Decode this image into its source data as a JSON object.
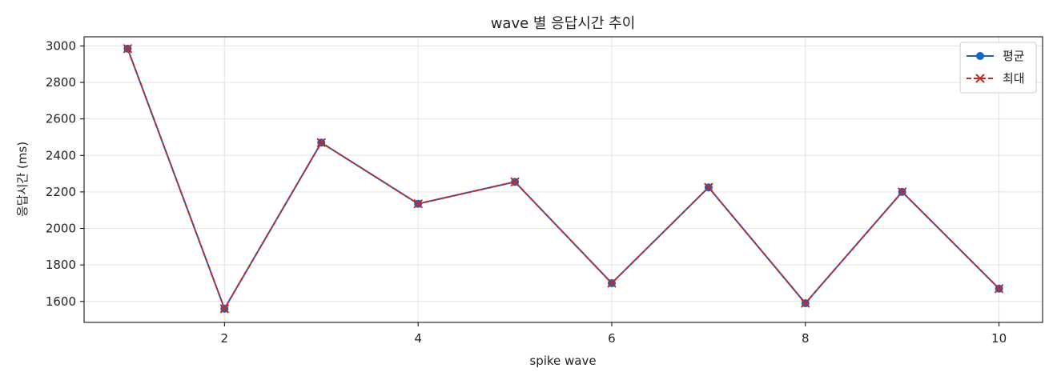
{
  "chart_data": {
    "type": "line",
    "title": "wave 별 응답시간 추이",
    "xlabel": "spike wave",
    "ylabel": "응답시간 (ms)",
    "x": [
      1,
      2,
      3,
      4,
      5,
      6,
      7,
      8,
      9,
      10
    ],
    "xlim": [
      0.55,
      10.45
    ],
    "ylim": [
      1485,
      3050
    ],
    "xticks": [
      2,
      4,
      6,
      8,
      10
    ],
    "yticks": [
      1600,
      1800,
      2000,
      2200,
      2400,
      2600,
      2800,
      3000
    ],
    "grid": true,
    "legend_position": "top-right",
    "series": [
      {
        "name": "평균",
        "color": "#1565c0",
        "marker": "circle",
        "linestyle": "solid",
        "values": [
          2985,
          1560,
          2470,
          2135,
          2255,
          1700,
          2225,
          1590,
          2200,
          1670
        ]
      },
      {
        "name": "최대",
        "color": "#c62828",
        "marker": "x",
        "linestyle": "dashed",
        "values": [
          2985,
          1560,
          2470,
          2135,
          2255,
          1700,
          2225,
          1590,
          2200,
          1670
        ]
      }
    ]
  }
}
